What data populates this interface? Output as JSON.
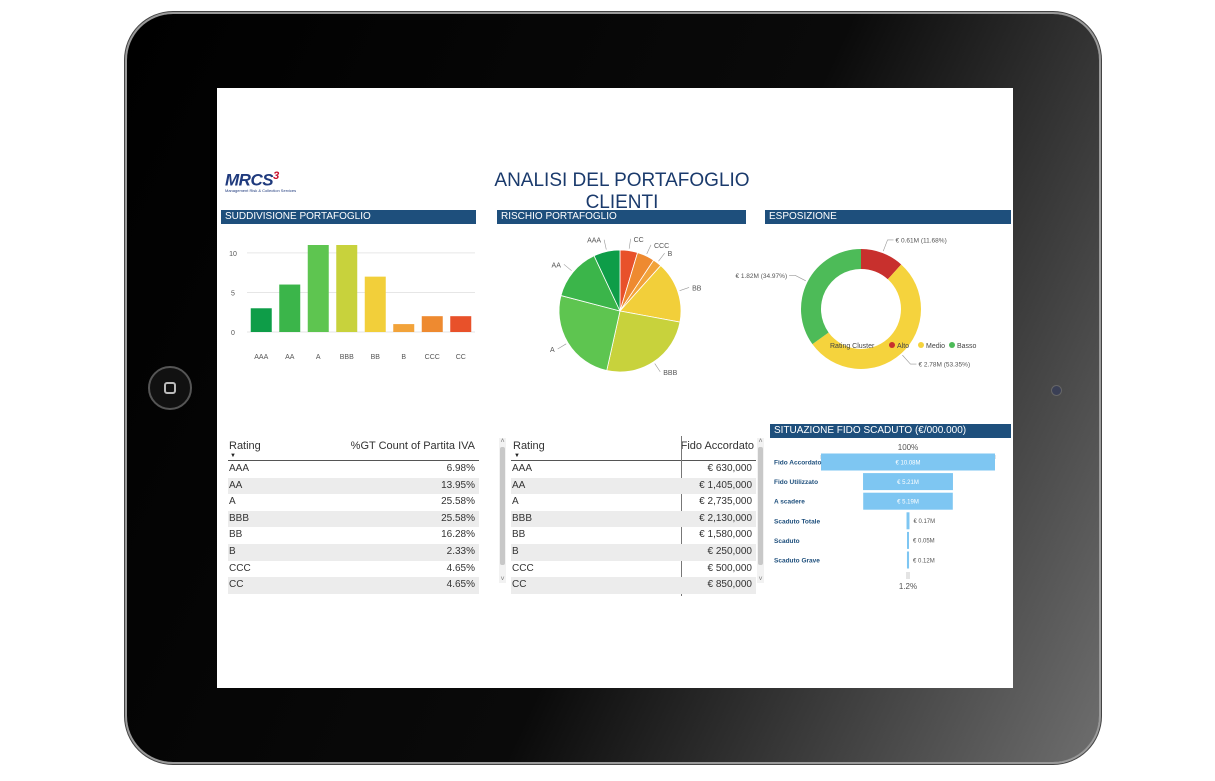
{
  "header": {
    "title": "ANALISI DEL PORTAFOGLIO CLIENTI",
    "logo_text": "MRCS",
    "logo_sup": "3",
    "logo_tagline": "Management Risk & Collection Services"
  },
  "sections": {
    "subdivision": "SUDDIVISIONE PORTAFOGLIO",
    "risk": "RISCHIO PORTAFOGLIO",
    "exposure": "ESPOSIZIONE",
    "overdue": "SITUAZIONE FIDO SCADUTO (€/000.000)"
  },
  "chart_data": [
    {
      "type": "bar",
      "categories": [
        "AAA",
        "AA",
        "A",
        "BBB",
        "BB",
        "B",
        "CCC",
        "CC"
      ],
      "values": [
        3,
        6,
        11,
        11,
        7,
        1,
        2,
        2
      ],
      "colors": [
        "#0e9d48",
        "#3bb54a",
        "#5ec550",
        "#c8d23c",
        "#f2cf3a",
        "#f2a33a",
        "#ee8a30",
        "#e8512a"
      ],
      "ylim": [
        0,
        11
      ],
      "yticks": [
        "0",
        "5",
        "10"
      ],
      "grid": true
    },
    {
      "type": "pie",
      "labels": [
        "CC",
        "CCC",
        "B",
        "BB",
        "BBB",
        "A",
        "AA",
        "AAA"
      ],
      "values": [
        4.65,
        4.65,
        2.33,
        16.28,
        25.58,
        25.58,
        13.95,
        6.98
      ],
      "colors": [
        "#e8512a",
        "#ee8a30",
        "#f2a33a",
        "#f2cf3a",
        "#c8d23c",
        "#5ec550",
        "#3bb54a",
        "#0e9d48"
      ]
    },
    {
      "type": "pie",
      "donut": true,
      "labels": [
        "Alto",
        "Medio",
        "Basso"
      ],
      "values": [
        11.68,
        53.35,
        34.97
      ],
      "data_labels": [
        "€ 0.61M (11.68%)",
        "€ 2.78M (53.35%)",
        "€ 1.82M (34.97%)"
      ],
      "colors": [
        "#c8302d",
        "#f5d33d",
        "#4dbb58"
      ],
      "legend_title": "Rating Cluster",
      "legend_position": "bottom"
    },
    {
      "type": "bar",
      "orientation": "funnel",
      "categories": [
        "Fido Accordato",
        "Fido Utilizzato",
        "A scadere",
        "Scaduto Totale",
        "Scaduto",
        "Scaduto Grave"
      ],
      "values": [
        10.08,
        5.21,
        5.19,
        0.17,
        0.05,
        0.12
      ],
      "data_labels": [
        "€ 10.08M",
        "€ 5.21M",
        "€ 5.19M",
        "€ 0.17M",
        "€ 0.05M",
        "€ 0.12M"
      ],
      "top_label": "100%",
      "bottom_label": "1.2%",
      "color": "#7ec6f2"
    }
  ],
  "table_rating": {
    "columns": [
      "Rating",
      "%GT Count of Partita IVA"
    ],
    "rows": [
      [
        "AAA",
        "6.98%"
      ],
      [
        "AA",
        "13.95%"
      ],
      [
        "A",
        "25.58%"
      ],
      [
        "BBB",
        "25.58%"
      ],
      [
        "BB",
        "16.28%"
      ],
      [
        "B",
        "2.33%"
      ],
      [
        "CCC",
        "4.65%"
      ],
      [
        "CC",
        "4.65%"
      ]
    ]
  },
  "table_fido": {
    "columns": [
      "Rating",
      "Fido Accordato"
    ],
    "rows": [
      [
        "AAA",
        "€ 630,000"
      ],
      [
        "AA",
        "€ 1,405,000"
      ],
      [
        "A",
        "€ 2,735,000"
      ],
      [
        "BBB",
        "€ 2,130,000"
      ],
      [
        "BB",
        "€ 1,580,000"
      ],
      [
        "B",
        "€ 250,000"
      ],
      [
        "CCC",
        "€ 500,000"
      ],
      [
        "CC",
        "€ 850,000"
      ]
    ]
  }
}
